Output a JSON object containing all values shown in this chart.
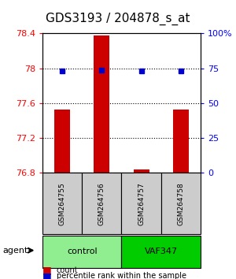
{
  "title": "GDS3193 / 204878_s_at",
  "samples": [
    "GSM264755",
    "GSM264756",
    "GSM264757",
    "GSM264758"
  ],
  "counts": [
    77.53,
    78.38,
    76.84,
    77.53
  ],
  "percentiles": [
    73,
    74,
    73,
    73
  ],
  "ylim_left": [
    76.8,
    78.4
  ],
  "ylim_right": [
    0,
    100
  ],
  "yticks_left": [
    76.8,
    77.2,
    77.6,
    78.0,
    78.4
  ],
  "yticks_right": [
    0,
    25,
    50,
    75,
    100
  ],
  "ytick_labels_left": [
    "76.8",
    "77.2",
    "77.6",
    "78",
    "78.4"
  ],
  "ytick_labels_right": [
    "0",
    "25",
    "50",
    "75",
    "100%"
  ],
  "groups": [
    {
      "label": "control",
      "samples": [
        0,
        1
      ],
      "color": "#90EE90"
    },
    {
      "label": "VAF347",
      "samples": [
        2,
        3
      ],
      "color": "#00CC00"
    }
  ],
  "group_row_label": "agent",
  "bar_color": "#CC0000",
  "dot_color": "#0000CC",
  "bar_width": 0.4,
  "legend_items": [
    {
      "color": "#CC0000",
      "label": "count"
    },
    {
      "color": "#0000CC",
      "label": "percentile rank within the sample"
    }
  ],
  "grid_yticks": [
    77.2,
    77.6,
    78.0
  ],
  "background_color": "#ffffff",
  "plot_bg_color": "#ffffff",
  "sample_box_color": "#CCCCCC",
  "title_fontsize": 11,
  "tick_fontsize": 8,
  "label_fontsize": 8
}
